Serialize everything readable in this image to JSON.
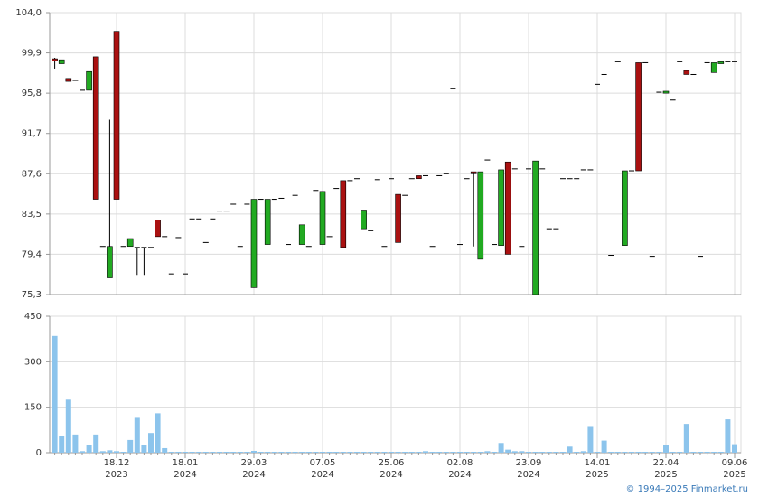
{
  "footer": "© 1994–2025 Finmarket.ru",
  "chart_data": [
    {
      "type": "candlestick",
      "up_color": "#22aa22",
      "down_color": "#aa1111",
      "grid": true,
      "ylim": [
        75.3,
        104.0
      ],
      "yticks": [
        {
          "value": 75.3,
          "label": "75,3"
        },
        {
          "value": 79.4,
          "label": "79,4"
        },
        {
          "value": 83.5,
          "label": "83,5"
        },
        {
          "value": 87.6,
          "label": "87,6"
        },
        {
          "value": 91.7,
          "label": "91,7"
        },
        {
          "value": 95.8,
          "label": "95,8"
        },
        {
          "value": 99.9,
          "label": "99,9"
        },
        {
          "value": 104.0,
          "label": "104,0"
        }
      ],
      "open": [
        99.3,
        98.8,
        97.3,
        97.1,
        96.1,
        96.1,
        99.5,
        80.2,
        77.0,
        102.1,
        80.2,
        80.2,
        80.1,
        80.1,
        80.1,
        82.9,
        81.2,
        77.4,
        81.1,
        77.4,
        83.0,
        83.0,
        80.6,
        83.0,
        83.8,
        83.8,
        84.5,
        80.2,
        84.5,
        76.0,
        85.0,
        80.4,
        85.0,
        85.1,
        80.4,
        85.4,
        80.4,
        80.2,
        85.9,
        80.4,
        81.2,
        86.1,
        86.9,
        86.9,
        87.1,
        82.0,
        81.8,
        87.0,
        80.2,
        87.1,
        85.5,
        85.4,
        87.1,
        87.4,
        87.4,
        80.2,
        87.4,
        87.6,
        96.3,
        80.4,
        87.1,
        87.8,
        78.9,
        89.0,
        80.4,
        80.3,
        88.8,
        88.1,
        80.2,
        88.1,
        75.3,
        88.1,
        82.0,
        82.0,
        87.1,
        87.1,
        87.1,
        88.0,
        88.0,
        96.7,
        97.7,
        79.3,
        99.0,
        80.3,
        87.9,
        98.9,
        98.9,
        79.2,
        95.9,
        95.8,
        95.1,
        99.0,
        98.1,
        97.7,
        79.2,
        98.9,
        97.9,
        98.8,
        99.0,
        99.0
      ],
      "high": [
        99.4,
        99.2,
        97.3,
        97.1,
        96.1,
        98.0,
        99.5,
        80.2,
        93.1,
        102.1,
        80.2,
        81.0,
        80.1,
        80.1,
        80.1,
        82.9,
        81.2,
        77.4,
        81.1,
        77.4,
        83.0,
        83.0,
        80.6,
        83.0,
        83.8,
        83.8,
        84.5,
        80.2,
        84.5,
        85.0,
        85.0,
        85.0,
        85.0,
        85.1,
        80.4,
        85.4,
        82.4,
        80.2,
        85.9,
        85.8,
        81.2,
        86.1,
        86.9,
        86.9,
        87.1,
        83.9,
        81.8,
        87.0,
        80.2,
        87.1,
        85.5,
        85.4,
        87.1,
        87.4,
        87.4,
        80.2,
        87.4,
        87.6,
        96.3,
        80.4,
        87.1,
        87.8,
        87.8,
        89.0,
        80.4,
        88.0,
        88.8,
        88.1,
        80.2,
        88.1,
        88.9,
        88.1,
        82.0,
        82.0,
        87.1,
        87.1,
        87.1,
        88.0,
        88.0,
        96.7,
        97.7,
        79.3,
        99.0,
        87.9,
        87.9,
        98.9,
        98.9,
        79.2,
        95.9,
        96.0,
        95.1,
        99.0,
        98.1,
        97.7,
        79.2,
        98.9,
        98.9,
        99.0,
        99.0,
        99.0
      ],
      "low": [
        98.3,
        98.8,
        97.0,
        97.1,
        96.1,
        96.1,
        85.0,
        80.2,
        77.0,
        85.0,
        80.2,
        80.2,
        77.3,
        77.3,
        80.1,
        81.2,
        81.2,
        77.4,
        81.1,
        77.4,
        83.0,
        83.0,
        80.6,
        83.0,
        83.8,
        83.8,
        84.5,
        80.2,
        84.5,
        76.0,
        85.0,
        80.4,
        85.0,
        85.1,
        80.4,
        85.4,
        80.4,
        80.2,
        85.9,
        80.4,
        81.2,
        86.1,
        80.1,
        86.9,
        87.1,
        82.0,
        81.8,
        87.0,
        80.2,
        87.1,
        80.6,
        85.4,
        87.1,
        87.1,
        87.4,
        80.2,
        87.4,
        87.6,
        96.3,
        80.4,
        87.1,
        80.2,
        78.9,
        89.0,
        80.4,
        80.3,
        79.4,
        88.1,
        80.2,
        88.1,
        75.3,
        88.1,
        82.0,
        82.0,
        87.1,
        87.1,
        87.1,
        88.0,
        88.0,
        96.7,
        97.7,
        79.3,
        99.0,
        80.3,
        87.9,
        87.9,
        98.9,
        79.2,
        95.9,
        95.8,
        95.1,
        99.0,
        97.7,
        97.7,
        79.2,
        98.9,
        97.9,
        98.8,
        99.0,
        99.0
      ],
      "close": [
        99.1,
        99.2,
        97.0,
        97.1,
        96.1,
        98.0,
        85.0,
        80.2,
        80.2,
        85.0,
        80.2,
        81.0,
        80.1,
        80.1,
        80.1,
        81.2,
        81.2,
        77.4,
        81.1,
        77.4,
        83.0,
        83.0,
        80.6,
        83.0,
        83.8,
        83.8,
        84.5,
        80.2,
        84.5,
        85.0,
        85.0,
        85.0,
        85.0,
        85.1,
        80.4,
        85.4,
        82.4,
        80.2,
        85.9,
        85.8,
        81.2,
        86.1,
        80.1,
        86.9,
        87.1,
        83.9,
        81.8,
        87.0,
        80.2,
        87.1,
        80.6,
        85.4,
        87.1,
        87.1,
        87.4,
        80.2,
        87.4,
        87.6,
        96.3,
        80.4,
        87.1,
        87.6,
        87.8,
        89.0,
        80.4,
        88.0,
        79.4,
        88.1,
        80.2,
        88.1,
        88.9,
        88.1,
        82.0,
        82.0,
        87.1,
        87.1,
        87.1,
        88.0,
        88.0,
        96.7,
        97.7,
        79.3,
        99.0,
        87.9,
        87.9,
        87.9,
        98.9,
        79.2,
        95.9,
        96.0,
        95.1,
        99.0,
        97.7,
        97.7,
        79.2,
        98.9,
        98.9,
        99.0,
        99.0,
        99.0
      ]
    },
    {
      "type": "bar",
      "color": "#8cc4ec",
      "grid": true,
      "ylim": [
        0,
        450
      ],
      "yticks": [
        0,
        150,
        300,
        450
      ],
      "categories": [
        null,
        null,
        null,
        null,
        null,
        null,
        null,
        null,
        null,
        "18.12",
        null,
        null,
        null,
        null,
        null,
        null,
        null,
        null,
        null,
        "18.01",
        null,
        null,
        null,
        null,
        null,
        null,
        null,
        null,
        null,
        "29.03",
        null,
        null,
        null,
        null,
        null,
        null,
        null,
        null,
        null,
        "07.05",
        null,
        null,
        null,
        null,
        null,
        null,
        null,
        null,
        null,
        "25.06",
        null,
        null,
        null,
        null,
        null,
        null,
        null,
        null,
        null,
        "02.08",
        null,
        null,
        null,
        null,
        null,
        null,
        null,
        null,
        null,
        "23.09",
        null,
        null,
        null,
        null,
        null,
        null,
        null,
        null,
        null,
        "14.01",
        null,
        null,
        null,
        null,
        null,
        null,
        null,
        null,
        null,
        "22.04",
        null,
        null,
        null,
        null,
        null,
        null,
        null,
        null,
        null,
        "09.06"
      ],
      "category_years": [
        null,
        null,
        null,
        null,
        null,
        null,
        null,
        null,
        null,
        "2023",
        null,
        null,
        null,
        null,
        null,
        null,
        null,
        null,
        null,
        "2024",
        null,
        null,
        null,
        null,
        null,
        null,
        null,
        null,
        null,
        "2024",
        null,
        null,
        null,
        null,
        null,
        null,
        null,
        null,
        null,
        "2024",
        null,
        null,
        null,
        null,
        null,
        null,
        null,
        null,
        null,
        "2024",
        null,
        null,
        null,
        null,
        null,
        null,
        null,
        null,
        null,
        "2024",
        null,
        null,
        null,
        null,
        null,
        null,
        null,
        null,
        null,
        "2024",
        null,
        null,
        null,
        null,
        null,
        null,
        null,
        null,
        null,
        "2025",
        null,
        null,
        null,
        null,
        null,
        null,
        null,
        null,
        null,
        "2025",
        null,
        null,
        null,
        null,
        null,
        null,
        null,
        null,
        null,
        "2025"
      ],
      "values": [
        385,
        55,
        175,
        60,
        5,
        25,
        60,
        5,
        8,
        5,
        3,
        42,
        115,
        25,
        65,
        130,
        15,
        3,
        3,
        3,
        3,
        3,
        3,
        3,
        3,
        3,
        3,
        3,
        3,
        6,
        3,
        3,
        3,
        3,
        3,
        3,
        3,
        3,
        3,
        3,
        3,
        3,
        3,
        3,
        3,
        3,
        3,
        3,
        3,
        3,
        3,
        3,
        3,
        3,
        5,
        3,
        3,
        3,
        3,
        3,
        3,
        3,
        3,
        5,
        3,
        32,
        10,
        5,
        5,
        3,
        3,
        3,
        3,
        3,
        3,
        20,
        3,
        5,
        88,
        3,
        40,
        3,
        3,
        3,
        3,
        3,
        3,
        3,
        3,
        25,
        3,
        3,
        95,
        3,
        3,
        3,
        3,
        3,
        110,
        28
      ]
    }
  ]
}
